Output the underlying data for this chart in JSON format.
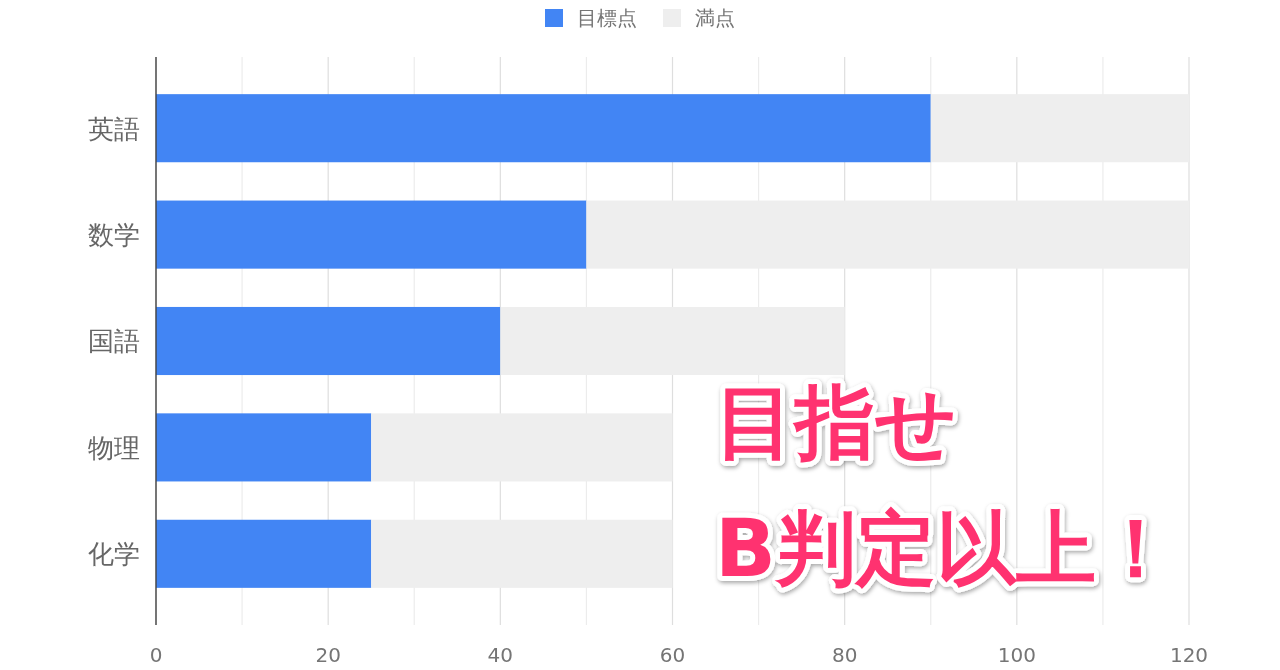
{
  "chart_data": {
    "type": "bar",
    "orientation": "horizontal",
    "stacked": true,
    "categories": [
      "英語",
      "数学",
      "国語",
      "物理",
      "化学"
    ],
    "series": [
      {
        "name": "目標点",
        "color": "#4285f4",
        "values": [
          90,
          50,
          40,
          25,
          25
        ]
      },
      {
        "name": "満点",
        "color": "#eeeeee",
        "values": [
          30,
          70,
          40,
          35,
          35
        ]
      }
    ],
    "xlim": [
      0,
      120
    ],
    "xticks": [
      0,
      {
        "value": 10,
        "label": null
      },
      20,
      {
        "value": 30,
        "label": null
      },
      40,
      {
        "value": 50,
        "label": null
      },
      60,
      {
        "value": 70,
        "label": null
      },
      80,
      {
        "value": 90,
        "label": null
      },
      100,
      {
        "value": 110,
        "label": null
      },
      120
    ],
    "grid": "x",
    "legend": "top",
    "annotations": [
      "目指せ",
      "B判定以上！"
    ]
  }
}
